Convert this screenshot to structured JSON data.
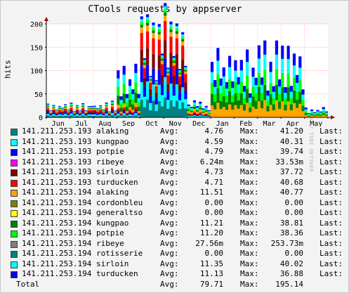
{
  "title": "CTools requests by appserver",
  "vendor_text": "RRDTOOL / TOBI OETIKER",
  "labels": {
    "avg": "Avg:",
    "max": "Max:",
    "last": "Last:"
  },
  "chart_data": {
    "type": "area",
    "title": "CTools requests by appserver",
    "ylabel": "hits",
    "ylim": [
      0,
      200
    ],
    "yticks": [
      0,
      50,
      100,
      150,
      200
    ],
    "ytick_labels": [
      "0",
      "50",
      "100",
      "150",
      "200"
    ],
    "xticks": [
      "Jun",
      "Jul",
      "Aug",
      "Sep",
      "Oct",
      "Nov",
      "Dec",
      "Jan",
      "Feb",
      "Mar",
      "Apr",
      "May"
    ],
    "grid": true,
    "stacked": true,
    "x_periods": [
      "Jun",
      "Jul",
      "Aug",
      "Sep",
      "Oct",
      "Nov",
      "Dec",
      "Jan",
      "Feb",
      "Mar",
      "Apr",
      "May"
    ],
    "series": [
      {
        "name": "141.211.253.193 alaking",
        "color": "#008080",
        "values": [
          4,
          4,
          4,
          4,
          38,
          38,
          2,
          0,
          0,
          0,
          0,
          0
        ]
      },
      {
        "name": "141.211.253.193 kungpao",
        "color": "#00ffff",
        "values": [
          4,
          4,
          4,
          4,
          38,
          38,
          2,
          0,
          0,
          0,
          0,
          0
        ]
      },
      {
        "name": "141.211.253.193 potpie",
        "color": "#0000ff",
        "values": [
          4,
          4,
          4,
          4,
          36,
          36,
          2,
          0,
          0,
          0,
          0,
          0
        ]
      },
      {
        "name": "141.211.253.193 ribeye",
        "color": "#ff00ff",
        "values": [
          0,
          0,
          0,
          0.01,
          0.03,
          0.01,
          0,
          0,
          0,
          0,
          0,
          0
        ]
      },
      {
        "name": "141.211.253.193 sirloin",
        "color": "#800000",
        "values": [
          4,
          4,
          4,
          4,
          34,
          34,
          2,
          0,
          0,
          0,
          0,
          0
        ]
      },
      {
        "name": "141.211.253.193 turducken",
        "color": "#ff0000",
        "values": [
          4,
          4,
          4,
          4,
          36,
          36,
          2,
          0,
          0,
          0,
          0,
          0
        ]
      },
      {
        "name": "141.211.253.194 alaking",
        "color": "#ffa500",
        "values": [
          3,
          3,
          3,
          8,
          12,
          10,
          6,
          30,
          28,
          34,
          36,
          5
        ]
      },
      {
        "name": "141.211.253.194 cordonbleu",
        "color": "#808000",
        "values": [
          0,
          0,
          0,
          0,
          0,
          0,
          0,
          0,
          0,
          0,
          0,
          0
        ]
      },
      {
        "name": "141.211.253.194 generaltso",
        "color": "#ffff00",
        "values": [
          0,
          0,
          0,
          0,
          0,
          0,
          0,
          0,
          0,
          0,
          0,
          0
        ]
      },
      {
        "name": "141.211.253.194 kungpao",
        "color": "#008000",
        "values": [
          2,
          2,
          2,
          20,
          6,
          6,
          4,
          30,
          27,
          30,
          32,
          4
        ]
      },
      {
        "name": "141.211.253.194 potpie",
        "color": "#00ff00",
        "values": [
          2,
          2,
          2,
          20,
          6,
          6,
          4,
          28,
          26,
          30,
          32,
          4
        ]
      },
      {
        "name": "141.211.253.194 ribeye",
        "color": "#808080",
        "values": [
          0,
          0,
          0,
          0,
          0,
          0,
          0,
          0,
          0,
          0,
          0,
          0
        ]
      },
      {
        "name": "141.211.253.194 rotisserie",
        "color": "#008080",
        "values": [
          0,
          0,
          0,
          0,
          0,
          0,
          0,
          0,
          0,
          0,
          0,
          0
        ]
      },
      {
        "name": "141.211.253.194 sirloin",
        "color": "#00ffff",
        "values": [
          2,
          2,
          2,
          18,
          6,
          6,
          4,
          28,
          26,
          30,
          32,
          4
        ]
      },
      {
        "name": "141.211.253.194 turducken",
        "color": "#0000ff",
        "values": [
          2,
          2,
          2,
          18,
          6,
          6,
          4,
          26,
          24,
          28,
          30,
          4
        ]
      }
    ]
  },
  "legend": [
    {
      "name": "141.211.253.193 alaking",
      "color": "#008080",
      "avg": "4.76",
      "max": "41.20"
    },
    {
      "name": "141.211.253.193 kungpao",
      "color": "#00ffff",
      "avg": "4.59",
      "max": "40.31"
    },
    {
      "name": "141.211.253.193 potpie",
      "color": "#0000ff",
      "avg": "4.79",
      "max": "39.74"
    },
    {
      "name": "141.211.253.193 ribeye",
      "color": "#ff00ff",
      "avg": "6.24m",
      "max": "33.53m"
    },
    {
      "name": "141.211.253.193 sirloin",
      "color": "#800000",
      "avg": "4.73",
      "max": "37.72"
    },
    {
      "name": "141.211.253.193 turducken",
      "color": "#ff0000",
      "avg": "4.71",
      "max": "40.68"
    },
    {
      "name": "141.211.253.194 alaking",
      "color": "#ffa500",
      "avg": "11.51",
      "max": "40.77"
    },
    {
      "name": "141.211.253.194 cordonbleu",
      "color": "#808000",
      "avg": "0.00",
      "max": "0.00"
    },
    {
      "name": "141.211.253.194 generaltso",
      "color": "#ffff00",
      "avg": "0.00",
      "max": "0.00"
    },
    {
      "name": "141.211.253.194 kungpao",
      "color": "#008000",
      "avg": "11.21",
      "max": "38.81"
    },
    {
      "name": "141.211.253.194 potpie",
      "color": "#00ff00",
      "avg": "11.20",
      "max": "38.36"
    },
    {
      "name": "141.211.253.194 ribeye",
      "color": "#808080",
      "avg": "27.56m",
      "max": "253.73m"
    },
    {
      "name": "141.211.253.194 rotisserie",
      "color": "#008080",
      "avg": "0.00",
      "max": "0.00"
    },
    {
      "name": "141.211.253.194 sirloin",
      "color": "#00ffff",
      "avg": "11.35",
      "max": "40.02"
    },
    {
      "name": "141.211.253.194 turducken",
      "color": "#0000ff",
      "avg": "11.13",
      "max": "36.88"
    }
  ],
  "total": {
    "label": "Total",
    "avg": "79.71",
    "max": "195.14"
  }
}
